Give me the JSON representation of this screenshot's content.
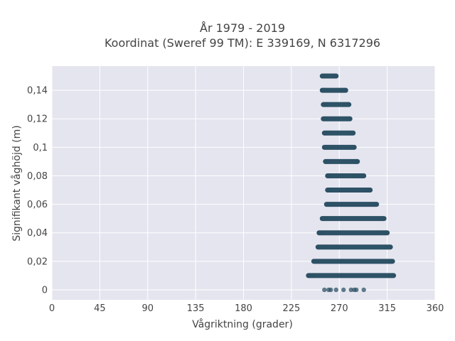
{
  "chart_data": {
    "type": "scatter",
    "title": [
      "År 1979 - 2019",
      "Koordinat (Sweref 99 TM): E 339169, N 6317296"
    ],
    "xlabel": "Vågriktning (grader)",
    "ylabel": "Signifikant våghöjd (m)",
    "xlim": [
      0,
      360
    ],
    "ylim": [
      -0.007,
      0.157
    ],
    "x_ticks": [
      0,
      45,
      90,
      135,
      180,
      225,
      270,
      315,
      360
    ],
    "x_tick_labels": [
      "0",
      "45",
      "90",
      "135",
      "180",
      "225",
      "270",
      "315",
      "360"
    ],
    "y_ticks": [
      0,
      0.02,
      0.04,
      0.06,
      0.08,
      0.1,
      0.12,
      0.14
    ],
    "y_tick_labels": [
      "0",
      "0,02",
      "0,04",
      "0,06",
      "0,08",
      "0,1",
      "0,12",
      "0,14"
    ],
    "grid": true,
    "legend": false,
    "marker_color": "#2e5266",
    "plot_background": "#e5e5ef",
    "dense_bands": [
      {
        "y": 0.0,
        "points": [
          [
            256,
            0
          ],
          [
            260,
            0
          ],
          [
            262,
            0
          ],
          [
            267,
            0
          ],
          [
            274,
            0
          ],
          [
            281,
            0
          ],
          [
            284,
            0
          ],
          [
            286,
            0
          ],
          [
            293,
            0
          ]
        ]
      },
      {
        "y": 0.01,
        "x_min": 241,
        "x_max": 321
      },
      {
        "y": 0.02,
        "x_min": 246,
        "x_max": 320
      },
      {
        "y": 0.03,
        "x_min": 250,
        "x_max": 318
      },
      {
        "y": 0.04,
        "x_min": 251,
        "x_max": 315
      },
      {
        "y": 0.05,
        "x_min": 254,
        "x_max": 312
      },
      {
        "y": 0.06,
        "x_min": 258,
        "x_max": 305
      },
      {
        "y": 0.07,
        "x_min": 259,
        "x_max": 299
      },
      {
        "y": 0.08,
        "x_min": 259,
        "x_max": 293
      },
      {
        "y": 0.09,
        "x_min": 257,
        "x_max": 287
      },
      {
        "y": 0.1,
        "x_min": 256,
        "x_max": 284
      },
      {
        "y": 0.11,
        "x_min": 256,
        "x_max": 283
      },
      {
        "y": 0.12,
        "x_min": 255,
        "x_max": 280
      },
      {
        "y": 0.13,
        "x_min": 255,
        "x_max": 279
      },
      {
        "y": 0.14,
        "x_min": 254,
        "x_max": 276
      },
      {
        "y": 0.15,
        "x_min": 254,
        "x_max": 267
      }
    ]
  }
}
